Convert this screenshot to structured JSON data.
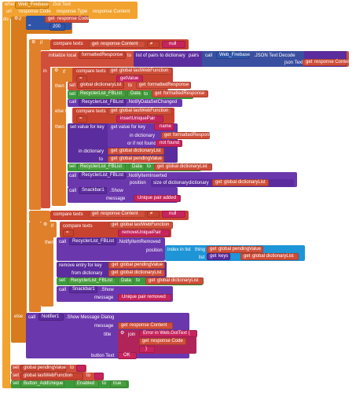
{
  "event": {
    "when": "when",
    "component": "Web_Firebase",
    "event_name": ".Got Text",
    "params": [
      "url",
      "response Code",
      "response Type",
      "response Content"
    ]
  },
  "do_label": "do",
  "if1": {
    "if": "if",
    "get": "get",
    "var": "response Code",
    "op": "=",
    "value": "200"
  },
  "then": "then",
  "else": "else",
  "else_if": "else if",
  "compare_texts": "compare texts",
  "compare_ne": "≠",
  "null_str": "null",
  "init_local": "initialize local",
  "formatted_response": "formattedResponse",
  "to": "to",
  "list_pairs": "list of pairs to dictionary",
  "pairs": "pairs",
  "call": "call",
  "web_firebase": "Web_Firebase",
  "json_decode": ".JSON Text Decode",
  "json_text": "json Text",
  "response_content": "response Content",
  "in": "in",
  "if_label": "if",
  "global_last_web_function": "global lastWebFunction",
  "get_value": "getValue",
  "set": "set",
  "global_dictionary_list": "global dictionaryList",
  "recyclerlist": "RecyclerList_FBList",
  "data_prop": "Data",
  "notify_changed": ".NotifyDataSetChanged",
  "insert_unique_pair": "insertUniquePair",
  "set_value_for_key": "set value for key",
  "get_value_for_key": "get value for key",
  "name": "name",
  "in_dictionary": "in dictionary",
  "or_if_not_found": "or if not found",
  "not_found": "not found",
  "global_pending_value": "global pendingValue",
  "notify_inserted": ".NotifyItemInserted",
  "position": "position",
  "size_of_dictionary": "size of dictionary",
  "dictionary": "dictionary",
  "snackbar": "Snackbar1",
  "show": ".Show",
  "message": "message",
  "unique_pair_added": "Unique pair added",
  "eq": "=",
  "remove_unique_pair": "removeUniquePair",
  "notify_removed": ".NotifyItemRemoved",
  "index_in_list": "index in list",
  "thing": "thing",
  "list": "list",
  "keys": "keys",
  "remove_entry": "remove entry for key",
  "from_dictionary": "from dictionary",
  "unique_pair_removed": "Unique pair removed",
  "notifier": "Notifier1",
  "show_message_dialog": ".Show Message Dialog",
  "title": "title",
  "join": "join",
  "error_in": "Error in Web.GotText (",
  "response_code": "response Code",
  "close_paren": ")",
  "button_text": "button Text",
  "ok": "OK",
  "empty_str": "",
  "global_last_fn_short": "global lastWebFunction",
  "button_add_unique": "Button_AddUnique",
  "enabled": "Enabled",
  "true": "true"
}
